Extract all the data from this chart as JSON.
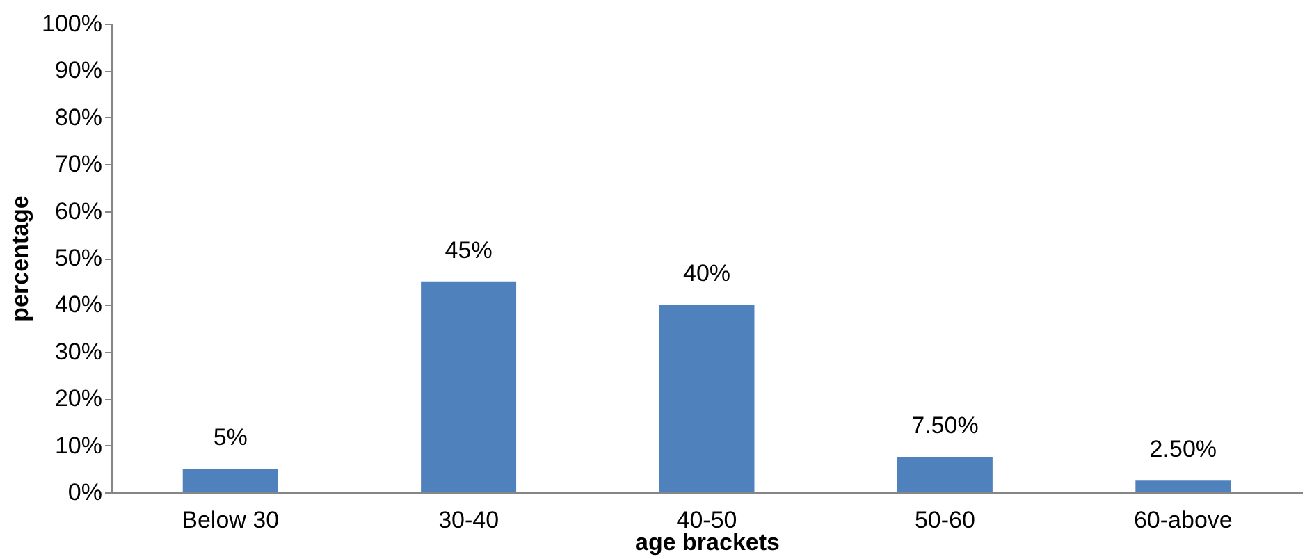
{
  "chart_data": {
    "type": "bar",
    "xlabel": "age brackets",
    "ylabel": "percentage",
    "categories": [
      "Below 30",
      "30-40",
      "40-50",
      "50-60",
      "60-above"
    ],
    "values": [
      5,
      45,
      40,
      7.5,
      2.5
    ],
    "value_labels": [
      "5%",
      "45%",
      "40%",
      "7.50%",
      "2.50%"
    ],
    "color": "#4f81bd",
    "ylim": [
      0,
      100
    ],
    "yticks": [
      {
        "value": 0,
        "label": "0%"
      },
      {
        "value": 10,
        "label": "10%"
      },
      {
        "value": 20,
        "label": "20%"
      },
      {
        "value": 30,
        "label": "30%"
      },
      {
        "value": 40,
        "label": "40%"
      },
      {
        "value": 50,
        "label": "50%"
      },
      {
        "value": 60,
        "label": "60%"
      },
      {
        "value": 70,
        "label": "70%"
      },
      {
        "value": 80,
        "label": "80%"
      },
      {
        "value": 90,
        "label": "90%"
      },
      {
        "value": 100,
        "label": "100%"
      }
    ],
    "grid": false
  }
}
